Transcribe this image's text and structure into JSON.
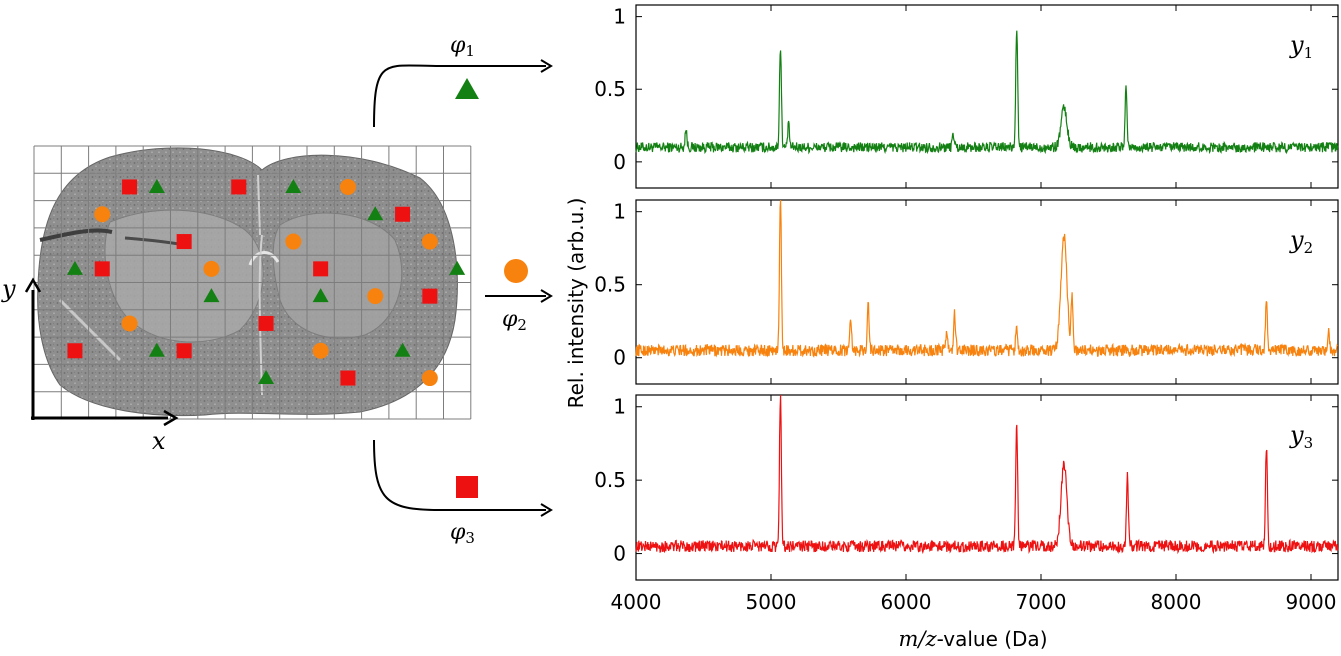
{
  "figure": {
    "left_panel": {
      "x_axis_label": "x",
      "y_axis_label": "y",
      "grid": {
        "cols": 16,
        "rows": 10
      },
      "markers": [
        {
          "cls": "square",
          "col": 3,
          "row": 1
        },
        {
          "cls": "triangle",
          "col": 4,
          "row": 1
        },
        {
          "cls": "square",
          "col": 7,
          "row": 1
        },
        {
          "cls": "triangle",
          "col": 9,
          "row": 1
        },
        {
          "cls": "circle",
          "col": 11,
          "row": 1
        },
        {
          "cls": "circle",
          "col": 2,
          "row": 2
        },
        {
          "cls": "triangle",
          "col": 12,
          "row": 2
        },
        {
          "cls": "square",
          "col": 13,
          "row": 2
        },
        {
          "cls": "square",
          "col": 5,
          "row": 3
        },
        {
          "cls": "circle",
          "col": 9,
          "row": 3
        },
        {
          "cls": "circle",
          "col": 14,
          "row": 3
        },
        {
          "cls": "triangle",
          "col": 1,
          "row": 4
        },
        {
          "cls": "square",
          "col": 2,
          "row": 4
        },
        {
          "cls": "circle",
          "col": 6,
          "row": 4
        },
        {
          "cls": "square",
          "col": 10,
          "row": 4
        },
        {
          "cls": "triangle",
          "col": 15,
          "row": 4
        },
        {
          "cls": "triangle",
          "col": 6,
          "row": 5
        },
        {
          "cls": "triangle",
          "col": 10,
          "row": 5
        },
        {
          "cls": "circle",
          "col": 12,
          "row": 5
        },
        {
          "cls": "square",
          "col": 14,
          "row": 5
        },
        {
          "cls": "circle",
          "col": 3,
          "row": 6
        },
        {
          "cls": "square",
          "col": 8,
          "row": 6
        },
        {
          "cls": "square",
          "col": 1,
          "row": 7
        },
        {
          "cls": "triangle",
          "col": 4,
          "row": 7
        },
        {
          "cls": "square",
          "col": 5,
          "row": 7
        },
        {
          "cls": "circle",
          "col": 10,
          "row": 7
        },
        {
          "cls": "triangle",
          "col": 13,
          "row": 7
        },
        {
          "cls": "triangle",
          "col": 8,
          "row": 8
        },
        {
          "cls": "square",
          "col": 11,
          "row": 8
        },
        {
          "cls": "circle",
          "col": 14,
          "row": 8
        }
      ]
    },
    "mappings": [
      {
        "label": "φ",
        "subscript": "1",
        "marker": "triangle"
      },
      {
        "label": "φ",
        "subscript": "2",
        "marker": "circle"
      },
      {
        "label": "φ",
        "subscript": "3",
        "marker": "square"
      }
    ],
    "colors": {
      "class_1": "#138013",
      "class_2": "#f8820e",
      "class_3": "#ee1111"
    }
  },
  "chart_data": {
    "type": "line",
    "xlabel_italic": "m/z",
    "xlabel_rest": "-value (Da)",
    "ylabel": "Rel. intensity (arb.u.)",
    "xlim": [
      4000,
      9200
    ],
    "ylim": [
      -0.18,
      1.08
    ],
    "xticks": [
      4000,
      5000,
      6000,
      7000,
      8000,
      9000
    ],
    "yticks": [
      0,
      0.5,
      1
    ],
    "ytick_labels": [
      "0",
      "0.5",
      "1"
    ],
    "series": [
      {
        "name": "y",
        "subscript": "1",
        "color": "#138013",
        "baseline": 0.1,
        "noise": 0.035,
        "peaks": [
          {
            "x": 4370,
            "y": 0.22
          },
          {
            "x": 5070,
            "y": 0.8
          },
          {
            "x": 5130,
            "y": 0.25
          },
          {
            "x": 6350,
            "y": 0.2
          },
          {
            "x": 6820,
            "y": 0.93
          },
          {
            "x": 7170,
            "y": 0.37
          },
          {
            "x": 7630,
            "y": 0.52
          }
        ]
      },
      {
        "name": "y",
        "subscript": "2",
        "color": "#f8820e",
        "baseline": 0.05,
        "noise": 0.04,
        "peaks": [
          {
            "x": 5070,
            "y": 1.08
          },
          {
            "x": 5590,
            "y": 0.29
          },
          {
            "x": 5720,
            "y": 0.38
          },
          {
            "x": 6300,
            "y": 0.18
          },
          {
            "x": 6360,
            "y": 0.3
          },
          {
            "x": 6820,
            "y": 0.22
          },
          {
            "x": 7170,
            "y": 0.84
          },
          {
            "x": 7230,
            "y": 0.42
          },
          {
            "x": 8670,
            "y": 0.4
          },
          {
            "x": 9130,
            "y": 0.2
          }
        ]
      },
      {
        "name": "y",
        "subscript": "3",
        "color": "#ee1111",
        "baseline": 0.05,
        "noise": 0.04,
        "peaks": [
          {
            "x": 5070,
            "y": 1.08
          },
          {
            "x": 6820,
            "y": 0.87
          },
          {
            "x": 7170,
            "y": 0.6
          },
          {
            "x": 7640,
            "y": 0.55
          },
          {
            "x": 8670,
            "y": 0.73
          }
        ]
      }
    ]
  }
}
